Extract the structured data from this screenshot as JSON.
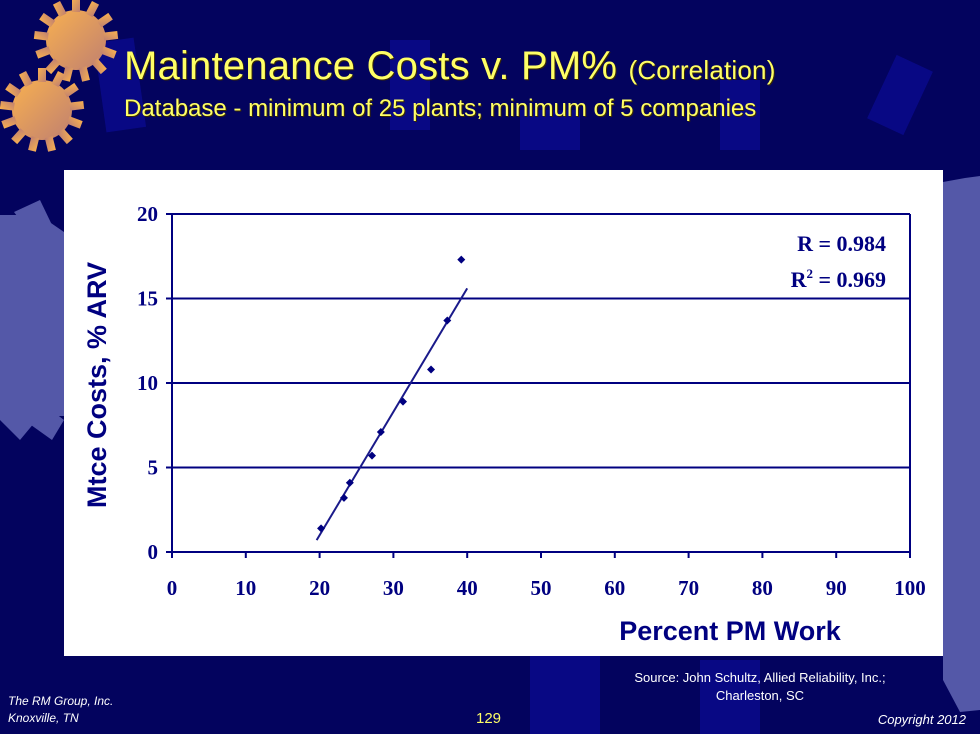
{
  "slide": {
    "title": "Maintenance  Costs v. PM%",
    "title_suffix": "(Correlation)",
    "subtitle": "Database  - minimum of 25 plants; minimum of 5 companies",
    "page_number": "129",
    "footer_left": [
      "The RM Group, Inc.",
      "Knoxville, TN"
    ],
    "source": [
      "Source:  John Schultz, Allied Reliability, Inc.;",
      "Charleston,  SC"
    ],
    "copyright": "Copyright 2012",
    "colors": {
      "background": "#03035e",
      "title": "#ffff66",
      "gear": "#f0a850",
      "chart_ink": "#000080"
    },
    "icons": [
      "gear-icon",
      "gear-icon",
      "background-gear-icon"
    ]
  },
  "chart_data": {
    "type": "scatter",
    "title": "Maintenance Costs v. PM% (Correlation)",
    "subtitle": "Database - minimum of 25 plants; minimum of 5 companies",
    "xlabel": "Percent PM  Work",
    "ylabel": "Mtce Costs, % ARV",
    "xlim": [
      0,
      100
    ],
    "ylim": [
      0,
      20
    ],
    "xticks": [
      0,
      10,
      20,
      30,
      40,
      50,
      60,
      70,
      80,
      90,
      100
    ],
    "yticks": [
      0,
      5,
      10,
      15,
      20
    ],
    "grid": "horizontal",
    "legend": "none",
    "points": [
      {
        "x": 20.2,
        "y": 1.4
      },
      {
        "x": 23.3,
        "y": 3.2
      },
      {
        "x": 24.1,
        "y": 4.1
      },
      {
        "x": 27.1,
        "y": 5.7
      },
      {
        "x": 28.3,
        "y": 7.1
      },
      {
        "x": 31.3,
        "y": 8.9
      },
      {
        "x": 35.1,
        "y": 10.8
      },
      {
        "x": 37.3,
        "y": 13.7
      },
      {
        "x": 39.2,
        "y": 17.3
      }
    ],
    "trendline": {
      "type": "linear",
      "x": [
        19.6,
        40.0
      ],
      "y": [
        0.7,
        15.6
      ]
    },
    "annotations": {
      "r_label": "R = 0.984",
      "r2_prefix": "R",
      "r2_sup": "2",
      "r2_value": " = 0.969"
    },
    "y_tick_labels": [
      "0",
      "5",
      "10",
      "15",
      "20"
    ],
    "x_tick_labels": [
      "0",
      "10",
      "20",
      "30",
      "40",
      "50",
      "60",
      "70",
      "80",
      "90",
      "100"
    ]
  }
}
